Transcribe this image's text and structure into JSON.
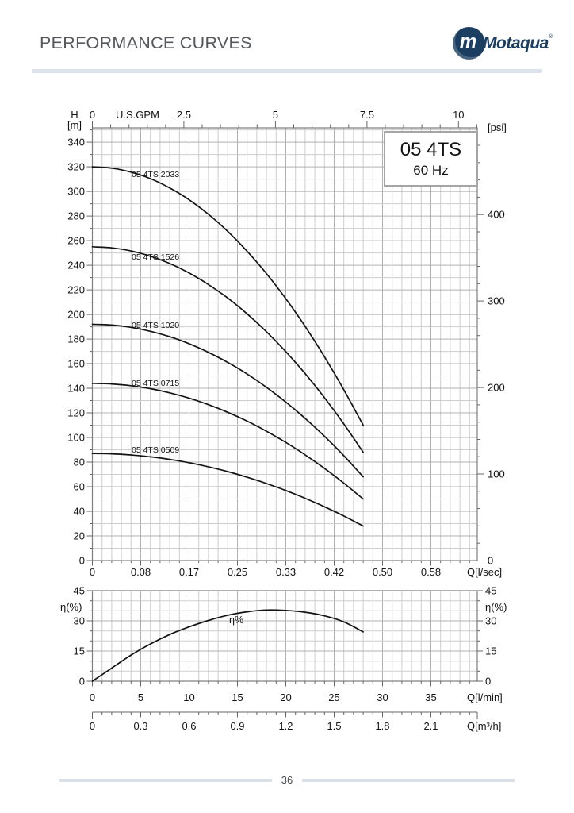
{
  "header": {
    "title": "PERFORMANCE CURVES",
    "logo_mark": "m",
    "logo_text": "Motaqua",
    "logo_reg": "®"
  },
  "footer": {
    "page_number": "36"
  },
  "colors": {
    "curve": "#141414",
    "grid_minor": "#cdcdcd",
    "grid_major": "#b0b0b0",
    "plot_border": "#7d7d7d",
    "tick": "#666666",
    "text": "#141414",
    "brand_navy": "#1c3e61",
    "accent_rule": "#dce3ec",
    "title_text": "#54575b"
  },
  "chart_data": [
    {
      "type": "line",
      "id": "head-curves",
      "title": "05 4TS",
      "subtitle": "60 Hz",
      "axes": {
        "top": {
          "label": "U.S.GPM",
          "unit": "U.S.GPM",
          "ticks": [
            "0",
            "2.5",
            "5",
            "7.5",
            "10"
          ],
          "tick_values_gpm": [
            0,
            2.5,
            5,
            7.5,
            10
          ],
          "minor_step_gpm": 0.5
        },
        "left": {
          "label_line1": "H",
          "label_line2": "[m]",
          "ticks": [
            0,
            20,
            40,
            60,
            80,
            100,
            120,
            140,
            160,
            180,
            200,
            220,
            240,
            260,
            280,
            300,
            320,
            340
          ],
          "minor_step": 10,
          "range_m": [
            0,
            351.6
          ]
        },
        "right": {
          "label": "[psi]",
          "ticks": [
            0,
            100,
            200,
            300,
            400
          ],
          "minor_step_psi": 20,
          "range_psi": [
            0,
            500
          ]
        },
        "bottom": {
          "label": "Q[l/sec]",
          "tick_labels": [
            "0",
            "0.08",
            "0.17",
            "0.25",
            "0.33",
            "0.42",
            "0.50",
            "0.58"
          ],
          "tick_positions_lmin": [
            0,
            5,
            10,
            15,
            20,
            25,
            30,
            35
          ],
          "minor_step_lmin": 1
        }
      },
      "grid": true,
      "series": [
        {
          "name": "05 4TS 2033",
          "points_lmin_m": [
            [
              0,
              320
            ],
            [
              2,
              318.9
            ],
            [
              4,
              315.7
            ],
            [
              6,
              310.4
            ],
            [
              8,
              302.8
            ],
            [
              10,
              293.2
            ],
            [
              12,
              281.4
            ],
            [
              14,
              267.5
            ],
            [
              16,
              251.4
            ],
            [
              18,
              233.2
            ],
            [
              20,
              212.8
            ],
            [
              22,
              190.3
            ],
            [
              24,
              165.6
            ],
            [
              26,
              138.8
            ],
            [
              28,
              110
            ]
          ]
        },
        {
          "name": "05 4TS 1526",
          "points_lmin_m": [
            [
              0,
              255
            ],
            [
              2,
              254.1
            ],
            [
              4,
              251.6
            ],
            [
              6,
              247.3
            ],
            [
              8,
              241.4
            ],
            [
              10,
              233.7
            ],
            [
              12,
              224.3
            ],
            [
              14,
              213.3
            ],
            [
              16,
              200.5
            ],
            [
              18,
              186
            ],
            [
              20,
              169.8
            ],
            [
              22,
              151.9
            ],
            [
              24,
              132.3
            ],
            [
              26,
              111
            ],
            [
              28,
              88
            ]
          ]
        },
        {
          "name": "05 4TS 1020",
          "points_lmin_m": [
            [
              0,
              192
            ],
            [
              2,
              191.4
            ],
            [
              4,
              189.5
            ],
            [
              6,
              186.3
            ],
            [
              8,
              181.9
            ],
            [
              10,
              176.2
            ],
            [
              12,
              169.2
            ],
            [
              14,
              161
            ],
            [
              16,
              151.6
            ],
            [
              18,
              140.8
            ],
            [
              20,
              128.8
            ],
            [
              22,
              115.5
            ],
            [
              24,
              101
            ],
            [
              26,
              85.2
            ],
            [
              28,
              68
            ]
          ]
        },
        {
          "name": "05 4TS 0715",
          "points_lmin_m": [
            [
              0,
              144
            ],
            [
              2,
              143.5
            ],
            [
              4,
              142.1
            ],
            [
              6,
              139.7
            ],
            [
              8,
              136.3
            ],
            [
              10,
              132
            ],
            [
              12,
              126.7
            ],
            [
              14,
              120.5
            ],
            [
              16,
              113.3
            ],
            [
              18,
              105.1
            ],
            [
              20,
              96
            ],
            [
              22,
              85.9
            ],
            [
              24,
              74.9
            ],
            [
              26,
              62.9
            ],
            [
              28,
              50
            ]
          ]
        },
        {
          "name": "05 4TS 0509",
          "points_lmin_m": [
            [
              0,
              87
            ],
            [
              2,
              86.7
            ],
            [
              4,
              85.8
            ],
            [
              6,
              84.3
            ],
            [
              8,
              82.2
            ],
            [
              10,
              79.5
            ],
            [
              12,
              76.2
            ],
            [
              14,
              72.3
            ],
            [
              16,
              67.7
            ],
            [
              18,
              62.6
            ],
            [
              20,
              56.9
            ],
            [
              22,
              50.6
            ],
            [
              24,
              43.7
            ],
            [
              26,
              36.2
            ],
            [
              28,
              28
            ]
          ]
        }
      ]
    },
    {
      "type": "line",
      "id": "efficiency",
      "axes": {
        "left": {
          "label": "η(%)",
          "ticks": [
            0,
            15,
            30,
            45
          ],
          "minor_step": 5,
          "range": [
            0,
            45
          ]
        },
        "right": {
          "label": "η(%)",
          "ticks": [
            0,
            15,
            30,
            45
          ],
          "minor_step": 5
        },
        "bottom": {
          "label": "Q[l/min]",
          "tick_labels": [
            "0",
            "5",
            "10",
            "15",
            "20",
            "25",
            "30",
            "35"
          ],
          "tick_positions_lmin": [
            0,
            5,
            10,
            15,
            20,
            25,
            30,
            35
          ],
          "minor_step_lmin": 1
        },
        "bottom2": {
          "label": "Q[m³/h]",
          "tick_labels": [
            "0",
            "0.3",
            "0.6",
            "0.9",
            "1.2",
            "1.5",
            "1.8",
            "2.1"
          ],
          "tick_positions_lmin": [
            0,
            5,
            10,
            15,
            20,
            25,
            30,
            35
          ],
          "minor_step_lmin": 1
        }
      },
      "grid": true,
      "series": [
        {
          "name": "η%",
          "points_lmin_pct": [
            [
              0,
              0
            ],
            [
              2,
              6.5
            ],
            [
              4,
              13
            ],
            [
              6,
              18.5
            ],
            [
              8,
              23.2
            ],
            [
              10,
              27
            ],
            [
              12,
              30.2
            ],
            [
              14,
              32.8
            ],
            [
              16,
              34.5
            ],
            [
              18,
              35.4
            ],
            [
              20,
              35.2
            ],
            [
              22,
              34.3
            ],
            [
              24,
              32.5
            ],
            [
              26,
              29.5
            ],
            [
              28,
              24.5
            ]
          ]
        }
      ]
    }
  ]
}
